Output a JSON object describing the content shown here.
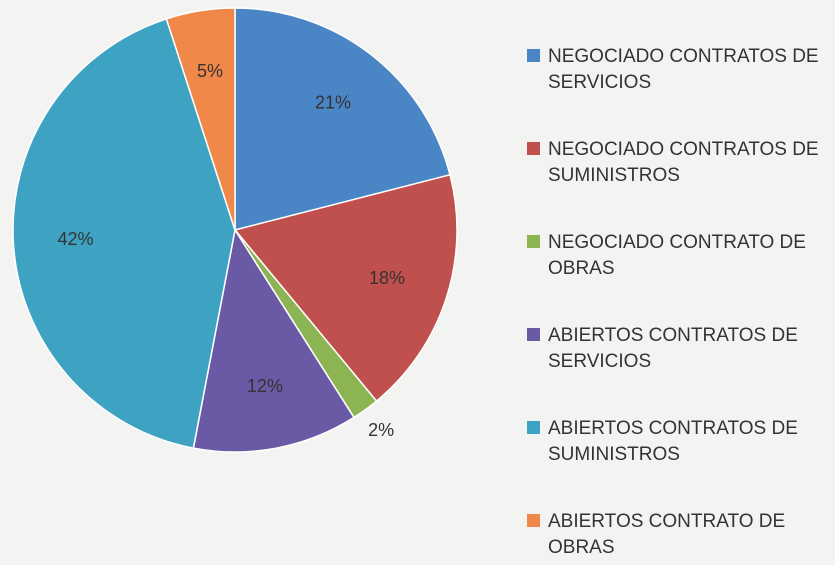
{
  "chart_data": {
    "type": "pie",
    "categories": [
      "NEGOCIADO CONTRATOS DE SERVICIOS",
      "NEGOCIADO CONTRATOS DE SUMINISTROS",
      "NEGOCIADO CONTRATO DE OBRAS",
      "ABIERTOS CONTRATOS DE SERVICIOS",
      "ABIERTOS CONTRATOS DE SUMINISTROS",
      "ABIERTOS CONTRATO DE OBRAS"
    ],
    "values": [
      21,
      18,
      2,
      12,
      42,
      5
    ],
    "value_labels": [
      "21%",
      "18%",
      "2%",
      "12%",
      "42%",
      "5%"
    ],
    "colors": [
      "#4a86c5",
      "#c0504d",
      "#8cb453",
      "#6a5aa6",
      "#3ea3c3",
      "#f0884a"
    ],
    "legend": "right"
  }
}
